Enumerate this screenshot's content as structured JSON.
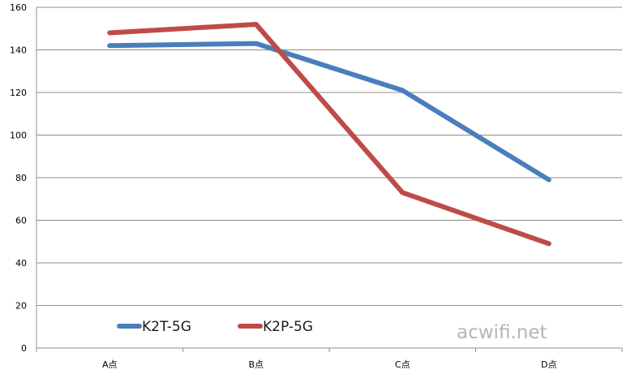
{
  "chart_data": {
    "type": "line",
    "categories": [
      "A点",
      "B点",
      "C点",
      "D点"
    ],
    "series": [
      {
        "name": "K2T-5G",
        "color": "#4a7ebb",
        "values": [
          142,
          143,
          121,
          79
        ]
      },
      {
        "name": "K2P-5G",
        "color": "#be4b48",
        "values": [
          148,
          152,
          73,
          49
        ]
      }
    ],
    "ylim": [
      0,
      160
    ],
    "yticks": [
      0,
      20,
      40,
      60,
      80,
      100,
      120,
      140,
      160
    ],
    "grid": true,
    "legend": "bottom-left",
    "watermark": "acwifi.net"
  }
}
